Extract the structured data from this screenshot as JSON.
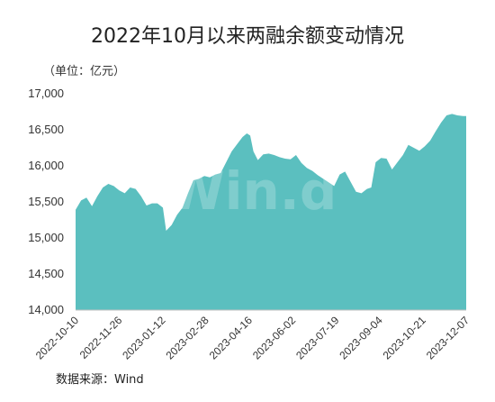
{
  "chart_data": {
    "type": "area",
    "title": "2022年10月以来两融余额变动情况",
    "unit_label": "（单位：亿元）",
    "source_label": "数据来源：Wind",
    "watermark": "Win.d",
    "fill_color": "#5BBFBF",
    "xlabel": "",
    "ylabel": "",
    "ylim": [
      14000,
      17000
    ],
    "yticks": [
      14000,
      14500,
      15000,
      15500,
      16000,
      16500,
      17000
    ],
    "ytick_labels": [
      "14,000",
      "14,500",
      "15,000",
      "15,500",
      "16,000",
      "16,500",
      "17,000"
    ],
    "xtick_labels": [
      "2022-10-10",
      "2022-11-26",
      "2023-01-12",
      "2023-02-28",
      "2023-04-16",
      "2023-06-02",
      "2023-07-19",
      "2023-09-04",
      "2023-10-21",
      "2023-12-07"
    ],
    "grid": false,
    "series": [
      {
        "values": [
          [
            0,
            15390
          ],
          [
            5,
            15520
          ],
          [
            10,
            15560
          ],
          [
            15,
            15440
          ],
          [
            20,
            15580
          ],
          [
            25,
            15700
          ],
          [
            30,
            15750
          ],
          [
            35,
            15720
          ],
          [
            40,
            15660
          ],
          [
            45,
            15620
          ],
          [
            50,
            15700
          ],
          [
            55,
            15680
          ],
          [
            60,
            15580
          ],
          [
            65,
            15450
          ],
          [
            70,
            15480
          ],
          [
            75,
            15480
          ],
          [
            80,
            15420
          ],
          [
            83,
            15100
          ],
          [
            88,
            15180
          ],
          [
            93,
            15320
          ],
          [
            98,
            15420
          ],
          [
            103,
            15620
          ],
          [
            108,
            15800
          ],
          [
            113,
            15820
          ],
          [
            118,
            15860
          ],
          [
            123,
            15840
          ],
          [
            128,
            15880
          ],
          [
            133,
            15900
          ],
          [
            138,
            16050
          ],
          [
            143,
            16200
          ],
          [
            148,
            16300
          ],
          [
            153,
            16400
          ],
          [
            157,
            16450
          ],
          [
            160,
            16420
          ],
          [
            163,
            16200
          ],
          [
            167,
            16080
          ],
          [
            172,
            16160
          ],
          [
            177,
            16170
          ],
          [
            182,
            16150
          ],
          [
            187,
            16120
          ],
          [
            192,
            16100
          ],
          [
            197,
            16090
          ],
          [
            202,
            16150
          ],
          [
            207,
            16040
          ],
          [
            212,
            15970
          ],
          [
            217,
            15930
          ],
          [
            222,
            15870
          ],
          [
            227,
            15820
          ],
          [
            232,
            15770
          ],
          [
            237,
            15720
          ],
          [
            242,
            15880
          ],
          [
            247,
            15920
          ],
          [
            252,
            15780
          ],
          [
            257,
            15640
          ],
          [
            262,
            15620
          ],
          [
            267,
            15680
          ],
          [
            271,
            15700
          ],
          [
            275,
            16050
          ],
          [
            280,
            16110
          ],
          [
            285,
            16100
          ],
          [
            290,
            15950
          ],
          [
            295,
            16050
          ],
          [
            300,
            16150
          ],
          [
            305,
            16290
          ],
          [
            310,
            16250
          ],
          [
            315,
            16210
          ],
          [
            320,
            16270
          ],
          [
            325,
            16350
          ],
          [
            330,
            16480
          ],
          [
            335,
            16600
          ],
          [
            340,
            16700
          ],
          [
            345,
            16720
          ],
          [
            350,
            16700
          ],
          [
            355,
            16690
          ],
          [
            358,
            16690
          ]
        ]
      }
    ]
  }
}
